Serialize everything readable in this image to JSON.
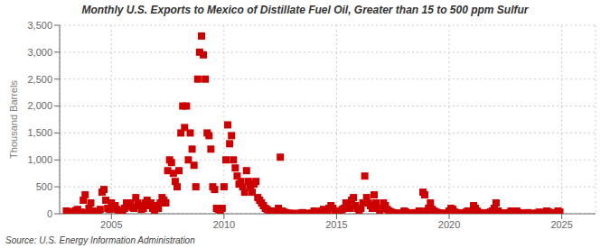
{
  "chart_data": {
    "type": "scatter",
    "title": "Monthly U.S. Exports to Mexico of Distillate Fuel Oil, Greater than 15 to 500 ppm Sulfur",
    "y_label": "Thousand Barrels",
    "annotations": [
      "Source: U.S. Energy Information Administration"
    ],
    "color": "#cc0000",
    "marker": "square",
    "grid": true,
    "xlim": [
      2002.7,
      2026.5
    ],
    "xticks": [
      2005,
      2010,
      2015,
      2020,
      2025
    ],
    "ylim": [
      0,
      3500
    ],
    "yticks": [
      0,
      500,
      {
        "value": 1000,
        "label": "1,000"
      },
      {
        "value": 1500,
        "label": "1,500"
      },
      {
        "value": 2000,
        "label": "2,000"
      },
      {
        "value": 2500,
        "label": "2,500"
      },
      {
        "value": 3000,
        "label": "3,000"
      },
      {
        "value": 3500,
        "label": "3,500"
      }
    ],
    "x": [
      2003,
      2003.0833333333,
      2003.1666666667,
      2003.25,
      2003.3333333333,
      2003.4166666667,
      2003.5,
      2003.5833333333,
      2003.6666666667,
      2003.75,
      2003.8333333333,
      2003.9166666667,
      2004,
      2004.0833333333,
      2004.1666666667,
      2004.25,
      2004.3333333333,
      2004.4166666667,
      2004.5,
      2004.5833333333,
      2004.6666666667,
      2004.75,
      2004.8333333333,
      2004.9166666667,
      2005,
      2005.0833333333,
      2005.1666666667,
      2005.25,
      2005.3333333333,
      2005.4166666667,
      2005.5,
      2005.5833333333,
      2005.6666666667,
      2005.75,
      2005.8333333333,
      2005.9166666667,
      2006,
      2006.0833333333,
      2006.1666666667,
      2006.25,
      2006.3333333333,
      2006.4166666667,
      2006.5,
      2006.5833333333,
      2006.6666666667,
      2006.75,
      2006.8333333333,
      2006.9166666667,
      2007,
      2007.0833333333,
      2007.1666666667,
      2007.25,
      2007.3333333333,
      2007.4166666667,
      2007.5,
      2007.5833333333,
      2007.6666666667,
      2007.75,
      2007.8333333333,
      2007.9166666667,
      2008,
      2008.0833333333,
      2008.1666666667,
      2008.25,
      2008.3333333333,
      2008.4166666667,
      2008.5,
      2008.5833333333,
      2008.6666666667,
      2008.75,
      2008.8333333333,
      2008.9166666667,
      2009,
      2009.0833333333,
      2009.1666666667,
      2009.25,
      2009.3333333333,
      2009.4166666667,
      2009.5,
      2009.5833333333,
      2009.6666666667,
      2009.75,
      2009.8333333333,
      2009.9166666667,
      2010,
      2010.0833333333,
      2010.1666666667,
      2010.25,
      2010.3333333333,
      2010.4166666667,
      2010.5,
      2010.5833333333,
      2010.6666666667,
      2010.75,
      2010.8333333333,
      2010.9166666667,
      2011,
      2011.0833333333,
      2011.1666666667,
      2011.25,
      2011.3333333333,
      2011.4166666667,
      2011.5,
      2011.5833333333,
      2011.6666666667,
      2011.75,
      2011.8333333333,
      2011.9166666667,
      2012,
      2012.0833333333,
      2012.1666666667,
      2012.25,
      2012.3333333333,
      2012.4166666667,
      2012.5,
      2012.5833333333,
      2012.6666666667,
      2012.75,
      2012.8333333333,
      2012.9166666667,
      2013,
      2013.0833333333,
      2013.1666666667,
      2013.25,
      2013.3333333333,
      2013.4166666667,
      2013.5,
      2013.5833333333,
      2013.6666666667,
      2013.75,
      2013.8333333333,
      2013.9166666667,
      2014,
      2014.0833333333,
      2014.1666666667,
      2014.25,
      2014.3333333333,
      2014.4166666667,
      2014.5,
      2014.5833333333,
      2014.6666666667,
      2014.75,
      2014.8333333333,
      2014.9166666667,
      2015,
      2015.0833333333,
      2015.1666666667,
      2015.25,
      2015.3333333333,
      2015.4166666667,
      2015.5,
      2015.5833333333,
      2015.6666666667,
      2015.75,
      2015.8333333333,
      2015.9166666667,
      2016,
      2016.0833333333,
      2016.1666666667,
      2016.25,
      2016.3333333333,
      2016.4166666667,
      2016.5,
      2016.5833333333,
      2016.6666666667,
      2016.75,
      2016.8333333333,
      2016.9166666667,
      2017,
      2017.0833333333,
      2017.1666666667,
      2017.25,
      2017.3333333333,
      2017.4166666667,
      2017.5,
      2017.5833333333,
      2017.6666666667,
      2017.75,
      2017.8333333333,
      2017.9166666667,
      2018,
      2018.0833333333,
      2018.1666666667,
      2018.25,
      2018.3333333333,
      2018.4166666667,
      2018.5,
      2018.5833333333,
      2018.6666666667,
      2018.75,
      2018.8333333333,
      2018.9166666667,
      2019,
      2019.0833333333,
      2019.1666666667,
      2019.25,
      2019.3333333333,
      2019.4166666667,
      2019.5,
      2019.5833333333,
      2019.6666666667,
      2019.75,
      2019.8333333333,
      2019.9166666667,
      2020,
      2020.0833333333,
      2020.1666666667,
      2020.25,
      2020.3333333333,
      2020.4166666667,
      2020.5,
      2020.5833333333,
      2020.6666666667,
      2020.75,
      2020.8333333333,
      2020.9166666667,
      2021,
      2021.0833333333,
      2021.1666666667,
      2021.25,
      2021.3333333333,
      2021.4166666667,
      2021.5,
      2021.5833333333,
      2021.6666666667,
      2021.75,
      2021.8333333333,
      2021.9166666667,
      2022,
      2022.0833333333,
      2022.1666666667,
      2022.25,
      2022.3333333333,
      2022.4166666667,
      2022.5,
      2022.5833333333,
      2022.6666666667,
      2022.75,
      2022.8333333333,
      2022.9166666667,
      2023,
      2023.0833333333,
      2023.1666666667,
      2023.25,
      2023.3333333333,
      2023.4166666667,
      2023.5,
      2023.5833333333,
      2023.6666666667,
      2023.75,
      2023.8333333333,
      2023.9166666667,
      2024,
      2024.0833333333,
      2024.1666666667,
      2024.25,
      2024.3333333333,
      2024.4166666667,
      2024.5,
      2024.5833333333,
      2024.6666666667,
      2024.75,
      2024.8333333333,
      2024.9166666667
    ],
    "values": [
      50,
      30,
      20,
      10,
      40,
      60,
      80,
      20,
      30,
      250,
      350,
      10,
      100,
      200,
      50,
      30,
      20,
      20,
      80,
      400,
      450,
      250,
      100,
      80,
      200,
      100,
      150,
      80,
      60,
      50,
      30,
      100,
      200,
      150,
      200,
      120,
      100,
      300,
      200,
      150,
      80,
      100,
      200,
      250,
      150,
      200,
      100,
      50,
      150,
      100,
      200,
      300,
      250,
      200,
      800,
      1000,
      950,
      750,
      600,
      500,
      800,
      1500,
      2000,
      1600,
      2000,
      1000,
      1500,
      1200,
      900,
      500,
      2500,
      3000,
      3300,
      2950,
      2500,
      1500,
      1450,
      1200,
      500,
      450,
      100,
      80,
      50,
      100,
      500,
      1000,
      1650,
      1300,
      1450,
      1000,
      850,
      700,
      550,
      600,
      500,
      400,
      800,
      600,
      500,
      400,
      550,
      600,
      300,
      250,
      200,
      150,
      100,
      80,
      50,
      30,
      50,
      20,
      50,
      100,
      1050,
      50,
      30,
      20,
      10,
      5,
      5,
      3,
      2,
      1,
      5,
      10,
      20,
      5,
      3,
      2,
      5,
      10,
      50,
      30,
      5,
      30,
      50,
      80,
      50,
      30,
      100,
      150,
      100,
      50,
      30,
      20,
      50,
      80,
      100,
      200,
      150,
      100,
      250,
      300,
      150,
      100,
      50,
      100,
      200,
      700,
      300,
      200,
      150,
      100,
      350,
      200,
      100,
      50,
      100,
      200,
      150,
      80,
      50,
      30,
      20,
      10,
      5,
      3,
      10,
      5,
      50,
      30,
      10,
      5,
      3,
      10,
      20,
      5,
      50,
      30,
      400,
      350,
      50,
      100,
      200,
      80,
      50,
      30,
      20,
      10,
      5,
      3,
      5,
      10,
      50,
      100,
      80,
      30,
      20,
      10,
      5,
      3,
      10,
      30,
      50,
      20,
      30,
      150,
      100,
      50,
      20,
      10,
      5,
      3,
      10,
      20,
      30,
      50,
      100,
      200,
      50,
      20,
      10,
      5,
      3,
      10,
      20,
      50,
      30,
      10,
      50,
      20,
      10,
      5,
      3,
      10,
      20,
      5,
      3,
      2,
      5,
      10,
      30,
      20,
      10,
      5,
      50,
      30,
      20,
      10,
      5,
      3,
      50,
      30
    ]
  }
}
